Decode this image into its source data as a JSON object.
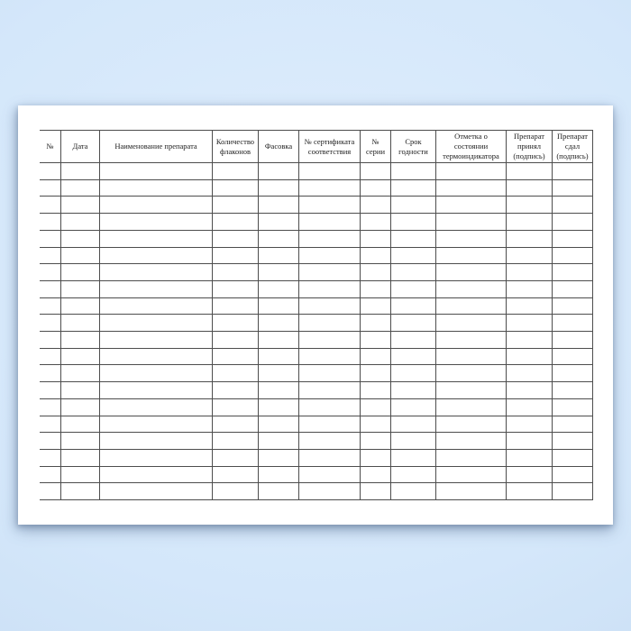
{
  "document": {
    "kind": "blank-register-form",
    "language": "ru"
  },
  "colors": {
    "background_center": "#e0eefd",
    "background_mid": "#d4e7fa",
    "background_edge": "#c6dbf2",
    "page": "#ffffff",
    "line": "#4d4d4d",
    "text": "#1c1c1c"
  },
  "table": {
    "row_count": 20,
    "columns": [
      {
        "id": "num",
        "label": "№",
        "lines": [
          "№"
        ]
      },
      {
        "id": "date",
        "label": "Дата",
        "lines": [
          "Дата"
        ]
      },
      {
        "id": "drug-name",
        "label": "Наименование препарата",
        "lines": [
          "Наименование препарата"
        ]
      },
      {
        "id": "vial-count",
        "label": "Количество флаконов",
        "lines": [
          "Количество",
          "флаконов"
        ]
      },
      {
        "id": "packaging",
        "label": "Фасовка",
        "lines": [
          "Фасовка"
        ]
      },
      {
        "id": "certificate-no",
        "label": "№ сертификата соответствия",
        "lines": [
          "№ сертификата",
          "соответствия"
        ]
      },
      {
        "id": "batch-no",
        "label": "№ серии",
        "lines": [
          "№ серии"
        ]
      },
      {
        "id": "expiry",
        "label": "Срок годности",
        "lines": [
          "Срок",
          "годности"
        ]
      },
      {
        "id": "thermo-indicator",
        "label": "Отметка о состоянии термоиндикатора",
        "lines": [
          "Отметка о состоянии",
          "термоиндикатора"
        ]
      },
      {
        "id": "received-by",
        "label": "Препарат принял (подпись)",
        "lines": [
          "Препарат",
          "принял",
          "(подпись)"
        ]
      },
      {
        "id": "handed-by",
        "label": "Препарат сдал (подпись)",
        "lines": [
          "Препарат",
          "сдал",
          "(подпись)"
        ]
      }
    ]
  }
}
